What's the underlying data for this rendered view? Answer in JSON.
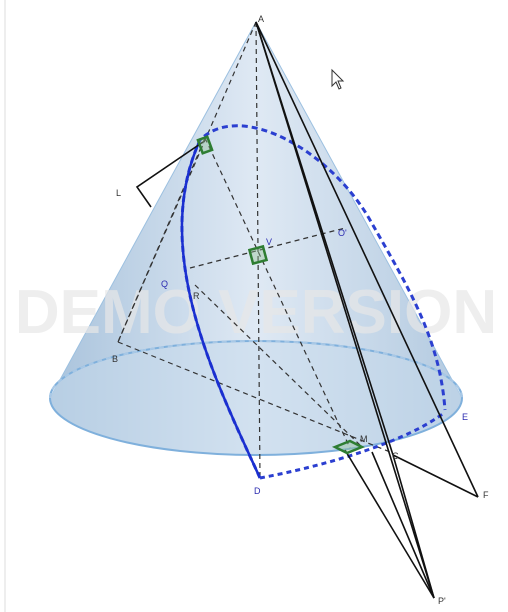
{
  "watermark": "DEMO VERSION",
  "points": [
    "A",
    "L",
    "Q",
    "R",
    "V",
    "O'",
    "B",
    "E",
    "D",
    "C",
    "M",
    "F",
    "P'"
  ]
}
